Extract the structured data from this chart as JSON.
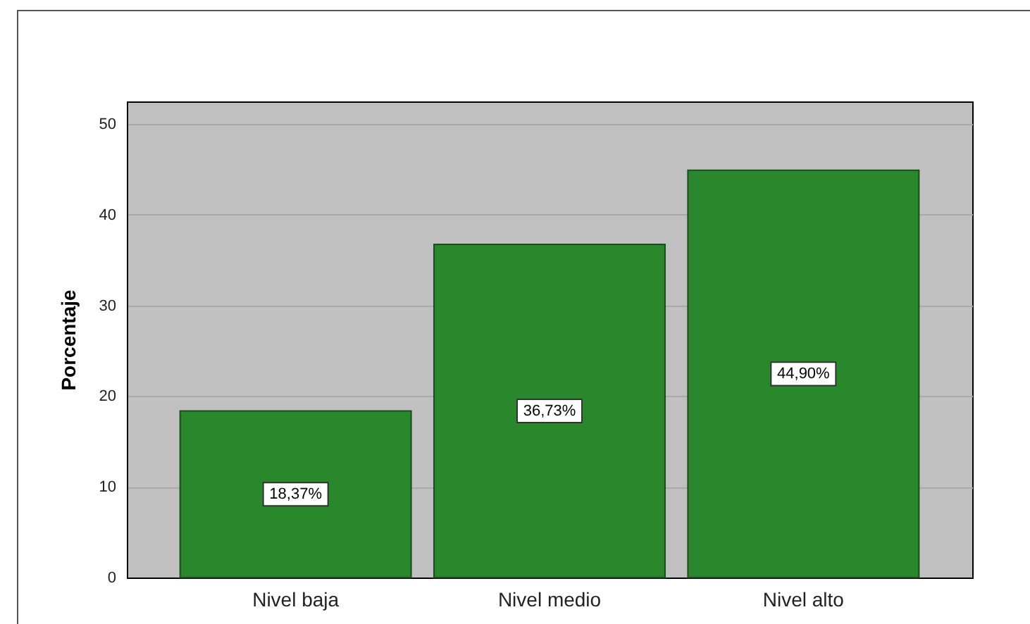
{
  "chart_data": {
    "type": "bar",
    "categories": [
      "Nivel baja",
      "Nivel medio",
      "Nivel alto"
    ],
    "values": [
      18.37,
      36.73,
      44.9
    ],
    "value_labels": [
      "18,37%",
      "36,73%",
      "44,90%"
    ],
    "color": "#28882b",
    "ylabel": "Porcentaje",
    "ylim": [
      0,
      52.5
    ],
    "yticks": [
      0,
      10,
      20,
      30,
      40,
      50
    ],
    "grid": "y"
  }
}
